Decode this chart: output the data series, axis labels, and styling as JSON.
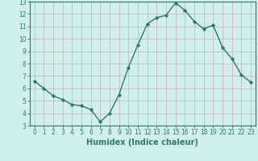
{
  "title": "",
  "xlabel": "Humidex (Indice chaleur)",
  "ylabel": "",
  "x": [
    0,
    1,
    2,
    3,
    4,
    5,
    6,
    7,
    8,
    9,
    10,
    11,
    12,
    13,
    14,
    15,
    16,
    17,
    18,
    19,
    20,
    21,
    22,
    23
  ],
  "y": [
    6.6,
    6.0,
    5.4,
    5.1,
    4.7,
    4.6,
    4.3,
    3.3,
    4.0,
    5.5,
    7.7,
    9.5,
    11.2,
    11.7,
    11.9,
    12.9,
    12.3,
    11.4,
    10.8,
    11.1,
    9.3,
    8.4,
    7.1,
    6.5
  ],
  "line_color": "#2d7a6a",
  "marker": "D",
  "marker_size": 2.2,
  "line_width": 1.0,
  "background_color": "#cff0ee",
  "grid_color": "#c8b8b8",
  "xlim": [
    -0.5,
    23.5
  ],
  "ylim": [
    3,
    13
  ],
  "yticks": [
    3,
    4,
    5,
    6,
    7,
    8,
    9,
    10,
    11,
    12,
    13
  ],
  "xticks": [
    0,
    1,
    2,
    3,
    4,
    5,
    6,
    7,
    8,
    9,
    10,
    11,
    12,
    13,
    14,
    15,
    16,
    17,
    18,
    19,
    20,
    21,
    22,
    23
  ],
  "tick_label_fontsize": 5.5,
  "xlabel_fontsize": 7,
  "tick_color": "#2d7a6a",
  "axis_color": "#2d7a6a"
}
